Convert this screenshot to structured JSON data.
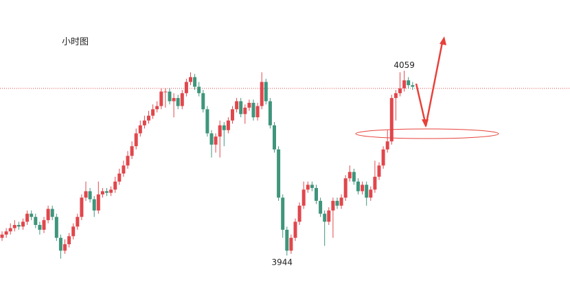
{
  "chart_data": {
    "type": "candlestick",
    "title": "小时图",
    "ylim": [
      3925,
      4103
    ],
    "up_color": "#e0474c",
    "down_color": "#3f957b",
    "price_line": 4048,
    "price_line_color": "#e0474c",
    "annotations": [
      4059,
      3944
    ],
    "open": [
      3955,
      3957,
      3959,
      3961,
      3963,
      3962,
      3965,
      3970,
      3968,
      3963,
      3960,
      3966,
      3973,
      3968,
      3955,
      3947,
      3951,
      3956,
      3962,
      3968,
      3980,
      3984,
      3979,
      3972,
      3982,
      3984,
      3983,
      3985,
      3990,
      3995,
      4000,
      4006,
      4012,
      4020,
      4025,
      4028,
      4031,
      4035,
      4037,
      4046,
      4046,
      4040,
      4042,
      4037,
      4045,
      4052,
      4055,
      4049,
      4045,
      4035,
      4020,
      4013,
      4018,
      4025,
      4022,
      4028,
      4035,
      4040,
      4032,
      4036,
      4039,
      4030,
      4037,
      4052,
      4040,
      4025,
      4010,
      3980,
      3960,
      3947,
      3955,
      3965,
      3975,
      3985,
      3988,
      3986,
      3978,
      3970,
      3965,
      3972,
      3978,
      3975,
      3980,
      3992,
      3996,
      3990,
      3984,
      3988,
      3980,
      3985,
      3993,
      4000,
      4010,
      4015,
      4042,
      4045,
      4048,
      4053,
      4050
    ],
    "high": [
      3959,
      3961,
      3964,
      3966,
      3965,
      3967,
      3972,
      3972,
      3970,
      3965,
      3968,
      3975,
      3975,
      3970,
      3957,
      3954,
      3958,
      3964,
      3970,
      3982,
      3990,
      3986,
      3981,
      3990,
      3986,
      3986,
      3987,
      3993,
      3998,
      4003,
      4009,
      4015,
      4023,
      4028,
      4031,
      4034,
      4038,
      4040,
      4048,
      4048,
      4048,
      4045,
      4044,
      4047,
      4054,
      4058,
      4057,
      4052,
      4047,
      4037,
      4022,
      4020,
      4028,
      4027,
      4030,
      4037,
      4042,
      4042,
      4038,
      4041,
      4041,
      4039,
      4058,
      4054,
      4042,
      4027,
      4012,
      3982,
      3962,
      3957,
      3967,
      3977,
      3990,
      3990,
      3990,
      3988,
      3980,
      3972,
      3974,
      3980,
      3980,
      3982,
      3994,
      4000,
      3998,
      3992,
      3990,
      3990,
      3987,
      4003,
      4002,
      4012,
      4022,
      4044,
      4047,
      4058,
      4059,
      4055,
      4052
    ],
    "low": [
      3953,
      3955,
      3957,
      3959,
      3960,
      3960,
      3963,
      3966,
      3961,
      3957,
      3958,
      3964,
      3966,
      3953,
      3942,
      3945,
      3949,
      3954,
      3960,
      3966,
      3978,
      3977,
      3968,
      3970,
      3980,
      3981,
      3981,
      3983,
      3988,
      3993,
      3998,
      4004,
      4010,
      4018,
      4023,
      4026,
      4029,
      4033,
      4035,
      4036,
      4038,
      4030,
      4035,
      4035,
      4043,
      4050,
      4047,
      4043,
      4033,
      4018,
      4005,
      4008,
      4005,
      4012,
      4020,
      4026,
      4033,
      4030,
      4026,
      4034,
      4028,
      4028,
      4035,
      4038,
      4023,
      4008,
      3978,
      3955,
      3944,
      3945,
      3953,
      3963,
      3973,
      3983,
      3984,
      3976,
      3968,
      3950,
      3963,
      3955,
      3973,
      3973,
      3978,
      3990,
      3988,
      3982,
      3982,
      3975,
      3978,
      3983,
      3991,
      3998,
      4008,
      4013,
      4028,
      4043,
      4046,
      4048,
      4047
    ],
    "close": [
      3957,
      3959,
      3961,
      3963,
      3962,
      3965,
      3970,
      3968,
      3963,
      3960,
      3966,
      3973,
      3968,
      3955,
      3947,
      3951,
      3956,
      3962,
      3968,
      3980,
      3984,
      3979,
      3972,
      3982,
      3984,
      3983,
      3985,
      3990,
      3995,
      4000,
      4006,
      4012,
      4020,
      4025,
      4028,
      4031,
      4035,
      4037,
      4046,
      4046,
      4040,
      4042,
      4037,
      4045,
      4052,
      4055,
      4049,
      4045,
      4035,
      4020,
      4013,
      4018,
      4025,
      4022,
      4028,
      4035,
      4040,
      4032,
      4036,
      4039,
      4030,
      4037,
      4052,
      4040,
      4025,
      4010,
      3980,
      3960,
      3947,
      3955,
      3965,
      3975,
      3985,
      3988,
      3986,
      3978,
      3970,
      3965,
      3972,
      3978,
      3975,
      3980,
      3992,
      3996,
      3990,
      3984,
      3988,
      3980,
      3985,
      3993,
      4000,
      4010,
      4015,
      4042,
      4045,
      4048,
      4053,
      4050,
      4049
    ]
  }
}
